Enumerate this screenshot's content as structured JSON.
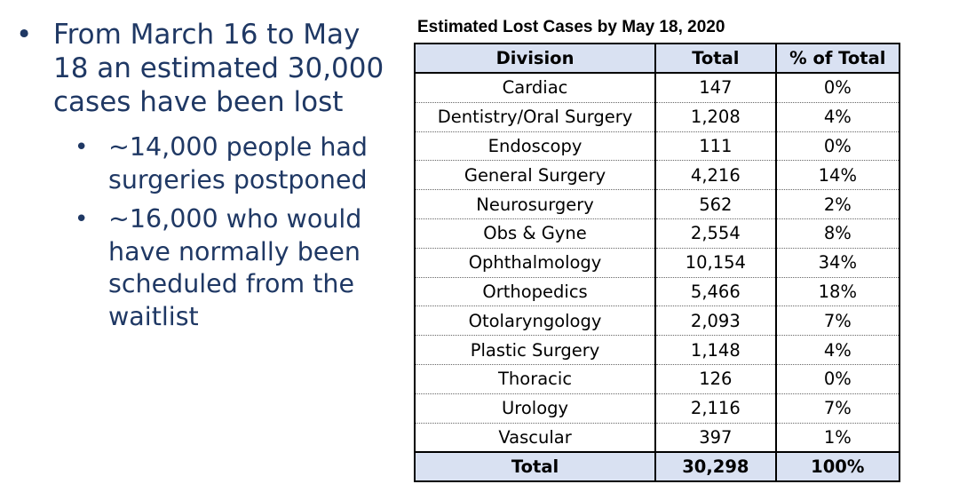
{
  "bullets": {
    "main": "From March 16 to May 18 an estimated 30,000 cases have been lost",
    "sub": [
      "~14,000 people had surgeries postponed",
      "~16,000 who would have normally been scheduled from the waitlist"
    ]
  },
  "table": {
    "title": "Estimated Lost Cases by May 18, 2020",
    "headers": [
      "Division",
      "Total",
      "% of Total"
    ],
    "rows": [
      [
        "Cardiac",
        "147",
        "0%"
      ],
      [
        "Dentistry/Oral Surgery",
        "1,208",
        "4%"
      ],
      [
        "Endoscopy",
        "111",
        "0%"
      ],
      [
        "General Surgery",
        "4,216",
        "14%"
      ],
      [
        "Neurosurgery",
        "562",
        "2%"
      ],
      [
        "Obs & Gyne",
        "2,554",
        "8%"
      ],
      [
        "Ophthalmology",
        "10,154",
        "34%"
      ],
      [
        "Orthopedics",
        "5,466",
        "18%"
      ],
      [
        "Otolaryngology",
        "2,093",
        "7%"
      ],
      [
        "Plastic Surgery",
        "1,148",
        "4%"
      ],
      [
        "Thoracic",
        "126",
        "0%"
      ],
      [
        "Urology",
        "2,116",
        "7%"
      ],
      [
        "Vascular",
        "397",
        "1%"
      ]
    ],
    "total": [
      "Total",
      "30,298",
      "100%"
    ]
  },
  "colors": {
    "text_blue": "#1f3864",
    "header_fill": "#d9e1f2"
  }
}
